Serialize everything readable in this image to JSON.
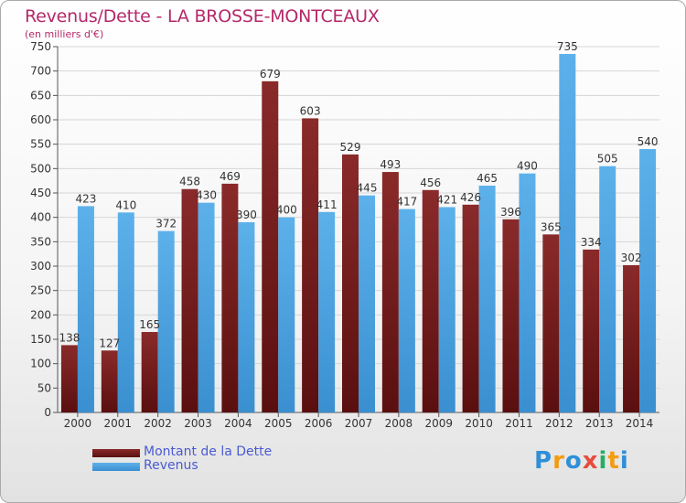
{
  "header": {
    "title": "Revenus/Dette - LA BROSSE-MONTCEAUX",
    "subtitle": "(en milliers d'€)"
  },
  "legend": {
    "items": [
      {
        "label": "Montant de la Dette",
        "color": "#7a2424"
      },
      {
        "label": "Revenus",
        "color": "#4ba3e3"
      }
    ]
  },
  "logo": {
    "text": "Proxiti",
    "letters": [
      "P",
      "r",
      "o",
      "x",
      "i",
      "t",
      "i"
    ],
    "colors": [
      "#2f8fd8",
      "#f39c12",
      "#2f8fd8",
      "#e74c3c",
      "#27ae60",
      "#f39c12",
      "#2f8fd8"
    ]
  },
  "chart_data": {
    "type": "bar",
    "categories": [
      "2000",
      "2001",
      "2002",
      "2003",
      "2004",
      "2005",
      "2006",
      "2007",
      "2008",
      "2009",
      "2010",
      "2011",
      "2012",
      "2013",
      "2014"
    ],
    "series": [
      {
        "name": "Montant de la Dette",
        "color": "#7a2424",
        "values": [
          138,
          127,
          165,
          458,
          469,
          679,
          603,
          529,
          493,
          456,
          426,
          396,
          365,
          334,
          302
        ]
      },
      {
        "name": "Revenus",
        "color": "#4ba3e3",
        "values": [
          423,
          410,
          372,
          430,
          390,
          400,
          411,
          445,
          417,
          421,
          465,
          490,
          735,
          505,
          540
        ]
      }
    ],
    "ylim": [
      0,
      750
    ],
    "yticks": [
      0,
      50,
      100,
      150,
      200,
      250,
      300,
      350,
      400,
      450,
      500,
      550,
      600,
      650,
      700,
      750
    ],
    "grid": true,
    "legend": "bottom-left"
  }
}
